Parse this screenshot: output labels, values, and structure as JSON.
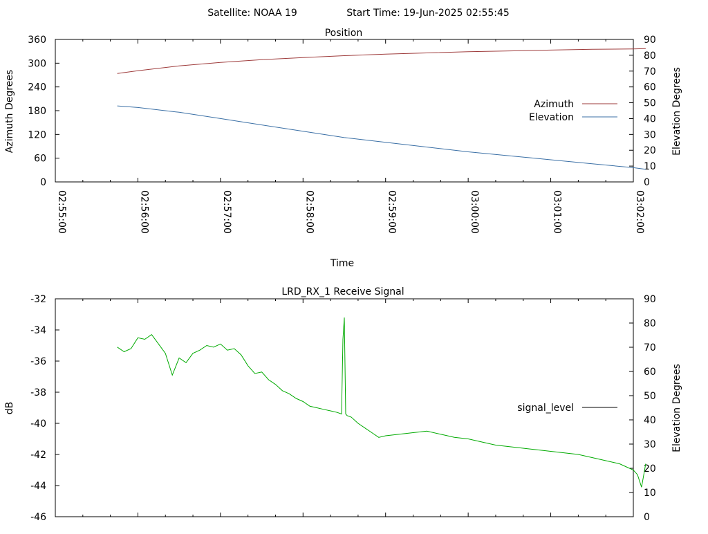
{
  "header": {
    "satellite": "Satellite: NOAA 19",
    "start_time": "Start Time: 19-Jun-2025 02:55:45"
  },
  "chart_data": [
    {
      "type": "line",
      "title": "Position",
      "xlabel": "Time",
      "ylabel": "Azimuth Degrees",
      "y2label": "Elevation Degrees",
      "x_ticks": [
        "02:55:00",
        "02:56:00",
        "02:57:00",
        "02:58:00",
        "02:59:00",
        "03:00:00",
        "03:01:00",
        "03:02:00"
      ],
      "x_range": [
        "02:55:00",
        "03:02:00"
      ],
      "ylim": [
        0,
        360
      ],
      "y_ticks": [
        0,
        60,
        120,
        180,
        240,
        300,
        360
      ],
      "y2lim": [
        0,
        90
      ],
      "y2_ticks": [
        0,
        10,
        20,
        30,
        40,
        50,
        60,
        70,
        80,
        90
      ],
      "grid": false,
      "legend_position": "right-center",
      "series": [
        {
          "name": "Azimuth",
          "axis": "y",
          "color": "#9e3b3b",
          "x": [
            "02:55:45",
            "02:56:00",
            "02:56:30",
            "02:57:00",
            "02:57:30",
            "02:58:00",
            "02:58:30",
            "02:59:00",
            "02:59:30",
            "03:00:00",
            "03:00:30",
            "03:01:00",
            "03:01:30",
            "03:02:00",
            "03:02:09"
          ],
          "values": [
            274,
            281,
            293,
            302,
            309,
            314,
            319,
            323,
            326,
            329,
            331,
            333,
            335,
            336,
            337
          ]
        },
        {
          "name": "Elevation",
          "axis": "y2",
          "color": "#3a6fa5",
          "x": [
            "02:55:45",
            "02:56:00",
            "02:56:30",
            "02:57:00",
            "02:57:30",
            "02:58:00",
            "02:58:30",
            "02:59:00",
            "02:59:30",
            "03:00:00",
            "03:00:30",
            "03:01:00",
            "03:01:30",
            "03:02:00",
            "03:02:09"
          ],
          "values": [
            48,
            47,
            44,
            40,
            36,
            32,
            28,
            25,
            22,
            19,
            16.5,
            14,
            11.5,
            9,
            8
          ]
        }
      ]
    },
    {
      "type": "line",
      "title": "LRD_RX_1 Receive Signal",
      "xlabel": "",
      "ylabel": "dB",
      "y2label": "Elevation Degrees",
      "x_range": [
        "02:55:00",
        "03:02:00"
      ],
      "ylim": [
        -46,
        -32
      ],
      "y_ticks": [
        -46,
        -44,
        -42,
        -40,
        -38,
        -36,
        -34,
        -32
      ],
      "y2lim": [
        0,
        90
      ],
      "y2_ticks": [
        0,
        10,
        20,
        30,
        40,
        50,
        60,
        70,
        80,
        90
      ],
      "grid": false,
      "legend_position": "right-center",
      "series": [
        {
          "name": "signal_level",
          "axis": "y",
          "color": "#00aa00",
          "x": [
            "02:55:45",
            "02:55:50",
            "02:55:55",
            "02:56:00",
            "02:56:05",
            "02:56:10",
            "02:56:15",
            "02:56:20",
            "02:56:25",
            "02:56:30",
            "02:56:35",
            "02:56:40",
            "02:56:45",
            "02:56:50",
            "02:56:55",
            "02:57:00",
            "02:57:05",
            "02:57:10",
            "02:57:15",
            "02:57:20",
            "02:57:25",
            "02:57:30",
            "02:57:35",
            "02:57:40",
            "02:57:45",
            "02:57:50",
            "02:57:55",
            "02:58:00",
            "02:58:05",
            "02:58:10",
            "02:58:15",
            "02:58:20",
            "02:58:25",
            "02:58:28",
            "02:58:29",
            "02:58:30",
            "02:58:31",
            "02:58:32",
            "02:58:35",
            "02:58:40",
            "02:58:45",
            "02:58:50",
            "02:58:55",
            "02:59:00",
            "02:59:10",
            "02:59:20",
            "02:59:30",
            "02:59:40",
            "02:59:50",
            "03:00:00",
            "03:00:10",
            "03:00:20",
            "03:00:30",
            "03:00:40",
            "03:00:50",
            "03:01:00",
            "03:01:10",
            "03:01:20",
            "03:01:30",
            "03:01:40",
            "03:01:50",
            "03:01:55",
            "03:02:00",
            "03:02:03",
            "03:02:06",
            "03:02:09"
          ],
          "values": [
            -35.1,
            -35.4,
            -35.2,
            -34.5,
            -34.6,
            -34.3,
            -34.9,
            -35.5,
            -36.9,
            -35.8,
            -36.1,
            -35.5,
            -35.3,
            -35.0,
            -35.1,
            -34.9,
            -35.3,
            -35.2,
            -35.6,
            -36.3,
            -36.8,
            -36.7,
            -37.2,
            -37.5,
            -37.9,
            -38.1,
            -38.4,
            -38.6,
            -38.9,
            -39.0,
            -39.1,
            -39.2,
            -39.3,
            -39.4,
            -34.6,
            -33.2,
            -39.4,
            -39.5,
            -39.6,
            -40.0,
            -40.3,
            -40.6,
            -40.9,
            -40.8,
            -40.7,
            -40.6,
            -40.5,
            -40.7,
            -40.9,
            -41.0,
            -41.2,
            -41.4,
            -41.5,
            -41.6,
            -41.7,
            -41.8,
            -41.9,
            -42.0,
            -42.2,
            -42.4,
            -42.6,
            -42.8,
            -43.0,
            -43.3,
            -44.1,
            -42.6
          ]
        }
      ]
    }
  ]
}
